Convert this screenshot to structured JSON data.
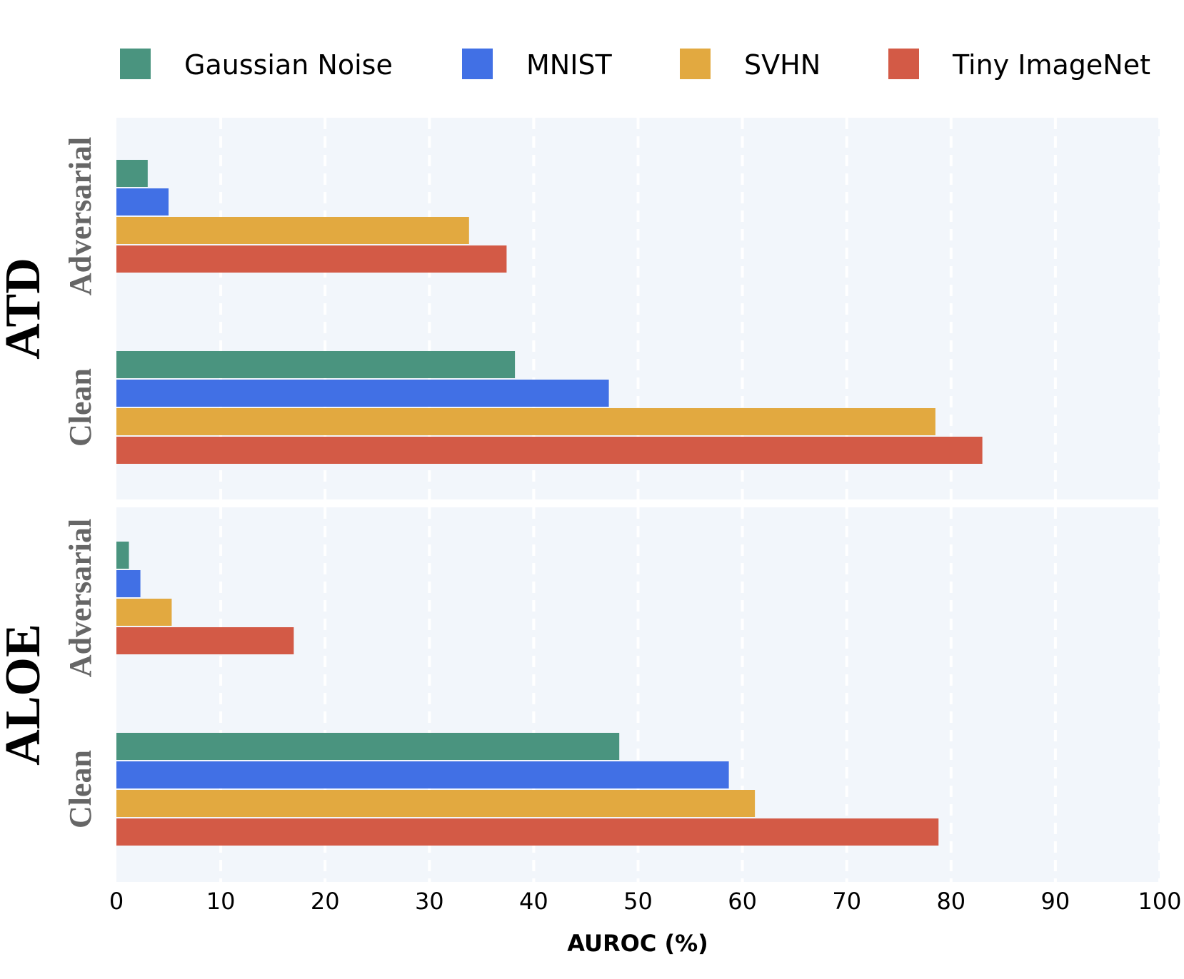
{
  "chart_data": {
    "type": "bar",
    "orientation": "horizontal",
    "xlabel": "AUROC (%)",
    "xlim": [
      0,
      100
    ],
    "xticks": [
      "0",
      "10",
      "20",
      "30",
      "40",
      "50",
      "60",
      "70",
      "80",
      "90",
      "100"
    ],
    "grid": "vertical dashed",
    "legend_position": "top",
    "series": [
      {
        "name": "Gaussian Noise",
        "color": "#4a947f"
      },
      {
        "name": "MNIST",
        "color": "#4170e5"
      },
      {
        "name": "SVHN",
        "color": "#e2a940"
      },
      {
        "name": "Tiny ImageNet",
        "color": "#d35a46"
      }
    ],
    "panels": [
      {
        "label": "ATD",
        "groups": [
          {
            "label": "Adversarial",
            "values": [
              3.0,
              5.0,
              33.8,
              37.4
            ]
          },
          {
            "label": "Clean",
            "values": [
              38.2,
              47.2,
              78.5,
              83.0
            ]
          }
        ]
      },
      {
        "label": "ALOE",
        "groups": [
          {
            "label": "Adversarial",
            "values": [
              1.2,
              2.3,
              5.3,
              17.0
            ]
          },
          {
            "label": "Clean",
            "values": [
              48.2,
              58.7,
              61.2,
              78.8
            ]
          }
        ]
      }
    ]
  }
}
